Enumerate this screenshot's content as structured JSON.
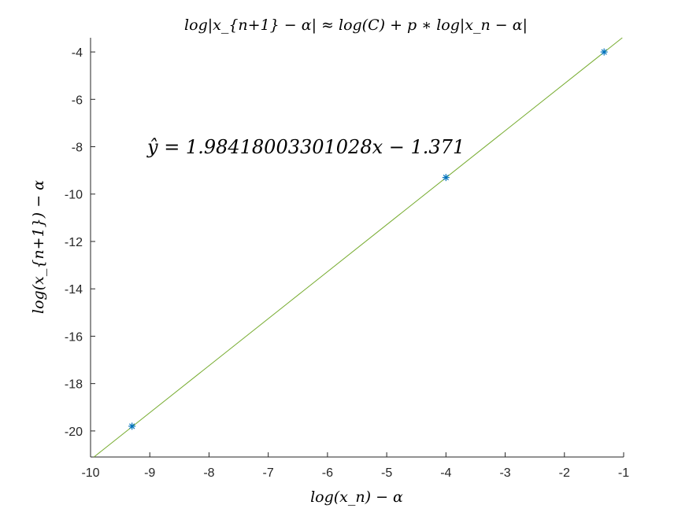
{
  "chart_data": {
    "type": "scatter",
    "title": "log|x_{n+1} − α| ≈ log(C) + p ∗ log|x_n − α|",
    "xlabel": "log(x_n) − α",
    "ylabel": "log(x_{n+1}) − α",
    "xlim": [
      -10,
      -1
    ],
    "ylim": [
      -21.1,
      -3.4
    ],
    "x_ticks": [
      -10,
      -9,
      -8,
      -7,
      -6,
      -5,
      -4,
      -3,
      -2,
      -1
    ],
    "y_ticks": [
      -4,
      -6,
      -8,
      -10,
      -12,
      -14,
      -16,
      -18,
      -20
    ],
    "grid": false,
    "series": [
      {
        "kind": "points",
        "marker": "*",
        "color": "#0072BD",
        "x": [
          -9.3,
          -4.0,
          -1.33
        ],
        "y": [
          -19.8,
          -9.3,
          -4.0
        ]
      },
      {
        "kind": "fit-line",
        "color": "#77AC30",
        "slope": 1.98418003301028,
        "intercept": -1.371,
        "x_range": [
          -10,
          -1
        ]
      }
    ],
    "annotation": "ŷ = 1.98418003301028x − 1.371",
    "annotation_color": "#77AC30"
  }
}
